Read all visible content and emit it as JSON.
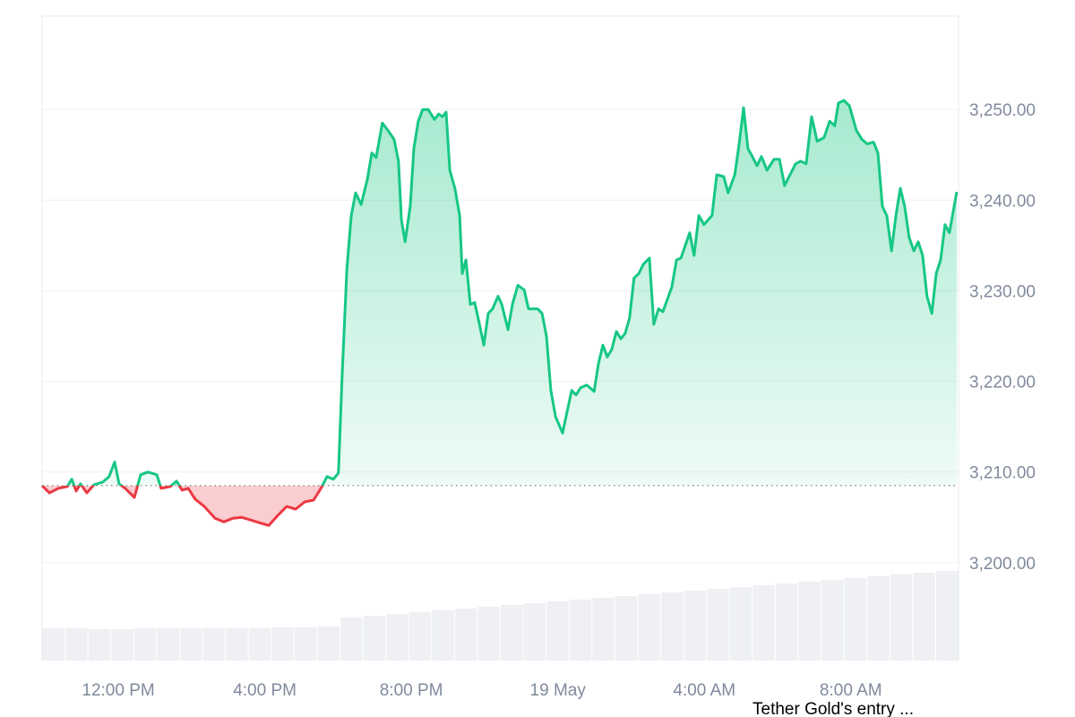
{
  "chart_data": {
    "type": "line",
    "annotation": "Tether Gold's entry ...",
    "baseline": 3208.5,
    "up_color": "#16c784",
    "down_color": "#ea3943",
    "grid": true,
    "xlim": [
      9.92,
      34.94
    ],
    "ylim": [
      3189.2,
      3260.3
    ],
    "xticks": [
      {
        "value": 12,
        "label": "12:00 PM"
      },
      {
        "value": 16,
        "label": "4:00 PM"
      },
      {
        "value": 20,
        "label": "8:00 PM"
      },
      {
        "value": 24,
        "label": "19 May"
      },
      {
        "value": 28,
        "label": "4:00 AM"
      },
      {
        "value": 32,
        "label": "8:00 AM"
      }
    ],
    "yticks": [
      {
        "value": 3200,
        "label": "3,200.00"
      },
      {
        "value": 3210,
        "label": "3,210.00"
      },
      {
        "value": 3220,
        "label": "3,220.00"
      },
      {
        "value": 3230,
        "label": "3,230.00"
      },
      {
        "value": 3240,
        "label": "3,240.00"
      },
      {
        "value": 3250,
        "label": "3,250.00"
      }
    ],
    "x": [
      9.92,
      10.12,
      10.36,
      10.61,
      10.73,
      10.85,
      10.97,
      11.14,
      11.34,
      11.58,
      11.75,
      11.9,
      12.02,
      12.19,
      12.44,
      12.61,
      12.81,
      13.05,
      13.17,
      13.42,
      13.59,
      13.74,
      13.91,
      14.1,
      14.35,
      14.64,
      14.88,
      15.13,
      15.37,
      15.62,
      15.86,
      16.11,
      16.35,
      16.6,
      16.84,
      17.09,
      17.33,
      17.53,
      17.7,
      17.87,
      18.01,
      18.11,
      18.24,
      18.36,
      18.48,
      18.63,
      18.8,
      18.92,
      19.04,
      19.21,
      19.36,
      19.53,
      19.65,
      19.73,
      19.83,
      19.97,
      20.07,
      20.19,
      20.31,
      20.46,
      20.63,
      20.75,
      20.85,
      20.95,
      21.05,
      21.19,
      21.32,
      21.39,
      21.49,
      21.61,
      21.73,
      21.85,
      21.98,
      22.1,
      22.22,
      22.37,
      22.47,
      22.64,
      22.76,
      22.91,
      23.08,
      23.2,
      23.45,
      23.57,
      23.69,
      23.81,
      23.94,
      24.13,
      24.25,
      24.38,
      24.5,
      24.62,
      24.79,
      24.99,
      25.11,
      25.23,
      25.35,
      25.47,
      25.6,
      25.72,
      25.84,
      25.96,
      26.08,
      26.21,
      26.33,
      26.5,
      26.62,
      26.75,
      26.87,
      27.11,
      27.24,
      27.36,
      27.6,
      27.72,
      27.85,
      27.99,
      28.21,
      28.34,
      28.53,
      28.65,
      28.83,
      28.95,
      29.07,
      29.19,
      29.31,
      29.44,
      29.56,
      29.71,
      29.9,
      30.05,
      30.19,
      30.34,
      30.49,
      30.63,
      30.78,
      30.93,
      31.08,
      31.27,
      31.42,
      31.56,
      31.66,
      31.81,
      31.96,
      32.15,
      32.3,
      32.45,
      32.62,
      32.74,
      32.86,
      32.98,
      33.11,
      33.23,
      33.35,
      33.47,
      33.59,
      33.72,
      33.84,
      33.96,
      34.08,
      34.21,
      34.33,
      34.45,
      34.57,
      34.69,
      34.89
    ],
    "values": [
      3208.5,
      3207.7,
      3208.2,
      3208.4,
      3209.2,
      3207.9,
      3208.7,
      3207.7,
      3208.6,
      3208.9,
      3209.5,
      3211.1,
      3208.7,
      3208.2,
      3207.2,
      3209.7,
      3210.0,
      3209.7,
      3208.2,
      3208.4,
      3209.0,
      3208.0,
      3208.2,
      3207.0,
      3206.2,
      3204.9,
      3204.5,
      3204.9,
      3205.0,
      3204.7,
      3204.4,
      3204.1,
      3205.2,
      3206.2,
      3205.9,
      3206.7,
      3206.9,
      3208.2,
      3209.5,
      3209.2,
      3209.9,
      3220.6,
      3232.4,
      3238.3,
      3240.8,
      3239.5,
      3242.3,
      3245.2,
      3244.7,
      3248.5,
      3247.7,
      3246.7,
      3244.3,
      3237.8,
      3235.4,
      3239.3,
      3245.7,
      3248.7,
      3250.0,
      3250.0,
      3248.9,
      3249.5,
      3249.2,
      3249.7,
      3243.3,
      3241.3,
      3238.3,
      3231.9,
      3233.4,
      3228.5,
      3228.7,
      3226.5,
      3224.0,
      3227.5,
      3228.0,
      3229.4,
      3228.5,
      3225.7,
      3228.5,
      3230.6,
      3230.1,
      3228.0,
      3228.0,
      3227.5,
      3225.0,
      3219.0,
      3216.1,
      3214.3,
      3216.6,
      3219.0,
      3218.5,
      3219.3,
      3219.6,
      3218.9,
      3222.0,
      3224.0,
      3222.7,
      3223.5,
      3225.5,
      3224.7,
      3225.3,
      3227.0,
      3231.4,
      3231.9,
      3232.9,
      3233.6,
      3226.3,
      3228.0,
      3227.7,
      3230.4,
      3233.4,
      3233.6,
      3236.4,
      3233.9,
      3238.3,
      3237.3,
      3238.3,
      3242.8,
      3242.6,
      3240.8,
      3242.8,
      3246.2,
      3250.2,
      3245.7,
      3244.8,
      3243.8,
      3244.8,
      3243.3,
      3244.5,
      3244.5,
      3241.6,
      3242.8,
      3244.0,
      3244.3,
      3244.0,
      3249.2,
      3246.5,
      3246.9,
      3248.7,
      3248.2,
      3250.7,
      3251.0,
      3250.4,
      3247.7,
      3246.7,
      3246.2,
      3246.4,
      3245.2,
      3239.3,
      3238.3,
      3234.4,
      3238.3,
      3241.3,
      3239.3,
      3235.9,
      3234.4,
      3235.4,
      3233.9,
      3229.4,
      3227.5,
      3231.9,
      3233.4,
      3237.3,
      3236.4,
      3240.9
    ],
    "volume": {
      "color": "#eef0f4",
      "lim": [
        0,
        130
      ],
      "values": [
        36,
        36,
        35,
        35,
        36,
        36,
        36,
        36,
        36,
        36,
        37,
        37,
        38,
        48,
        50,
        52,
        54,
        56,
        58,
        60,
        62,
        64,
        66,
        68,
        70,
        72,
        74,
        76,
        78,
        80,
        82,
        84,
        86,
        88,
        90,
        92,
        94,
        96,
        98,
        100
      ]
    }
  }
}
